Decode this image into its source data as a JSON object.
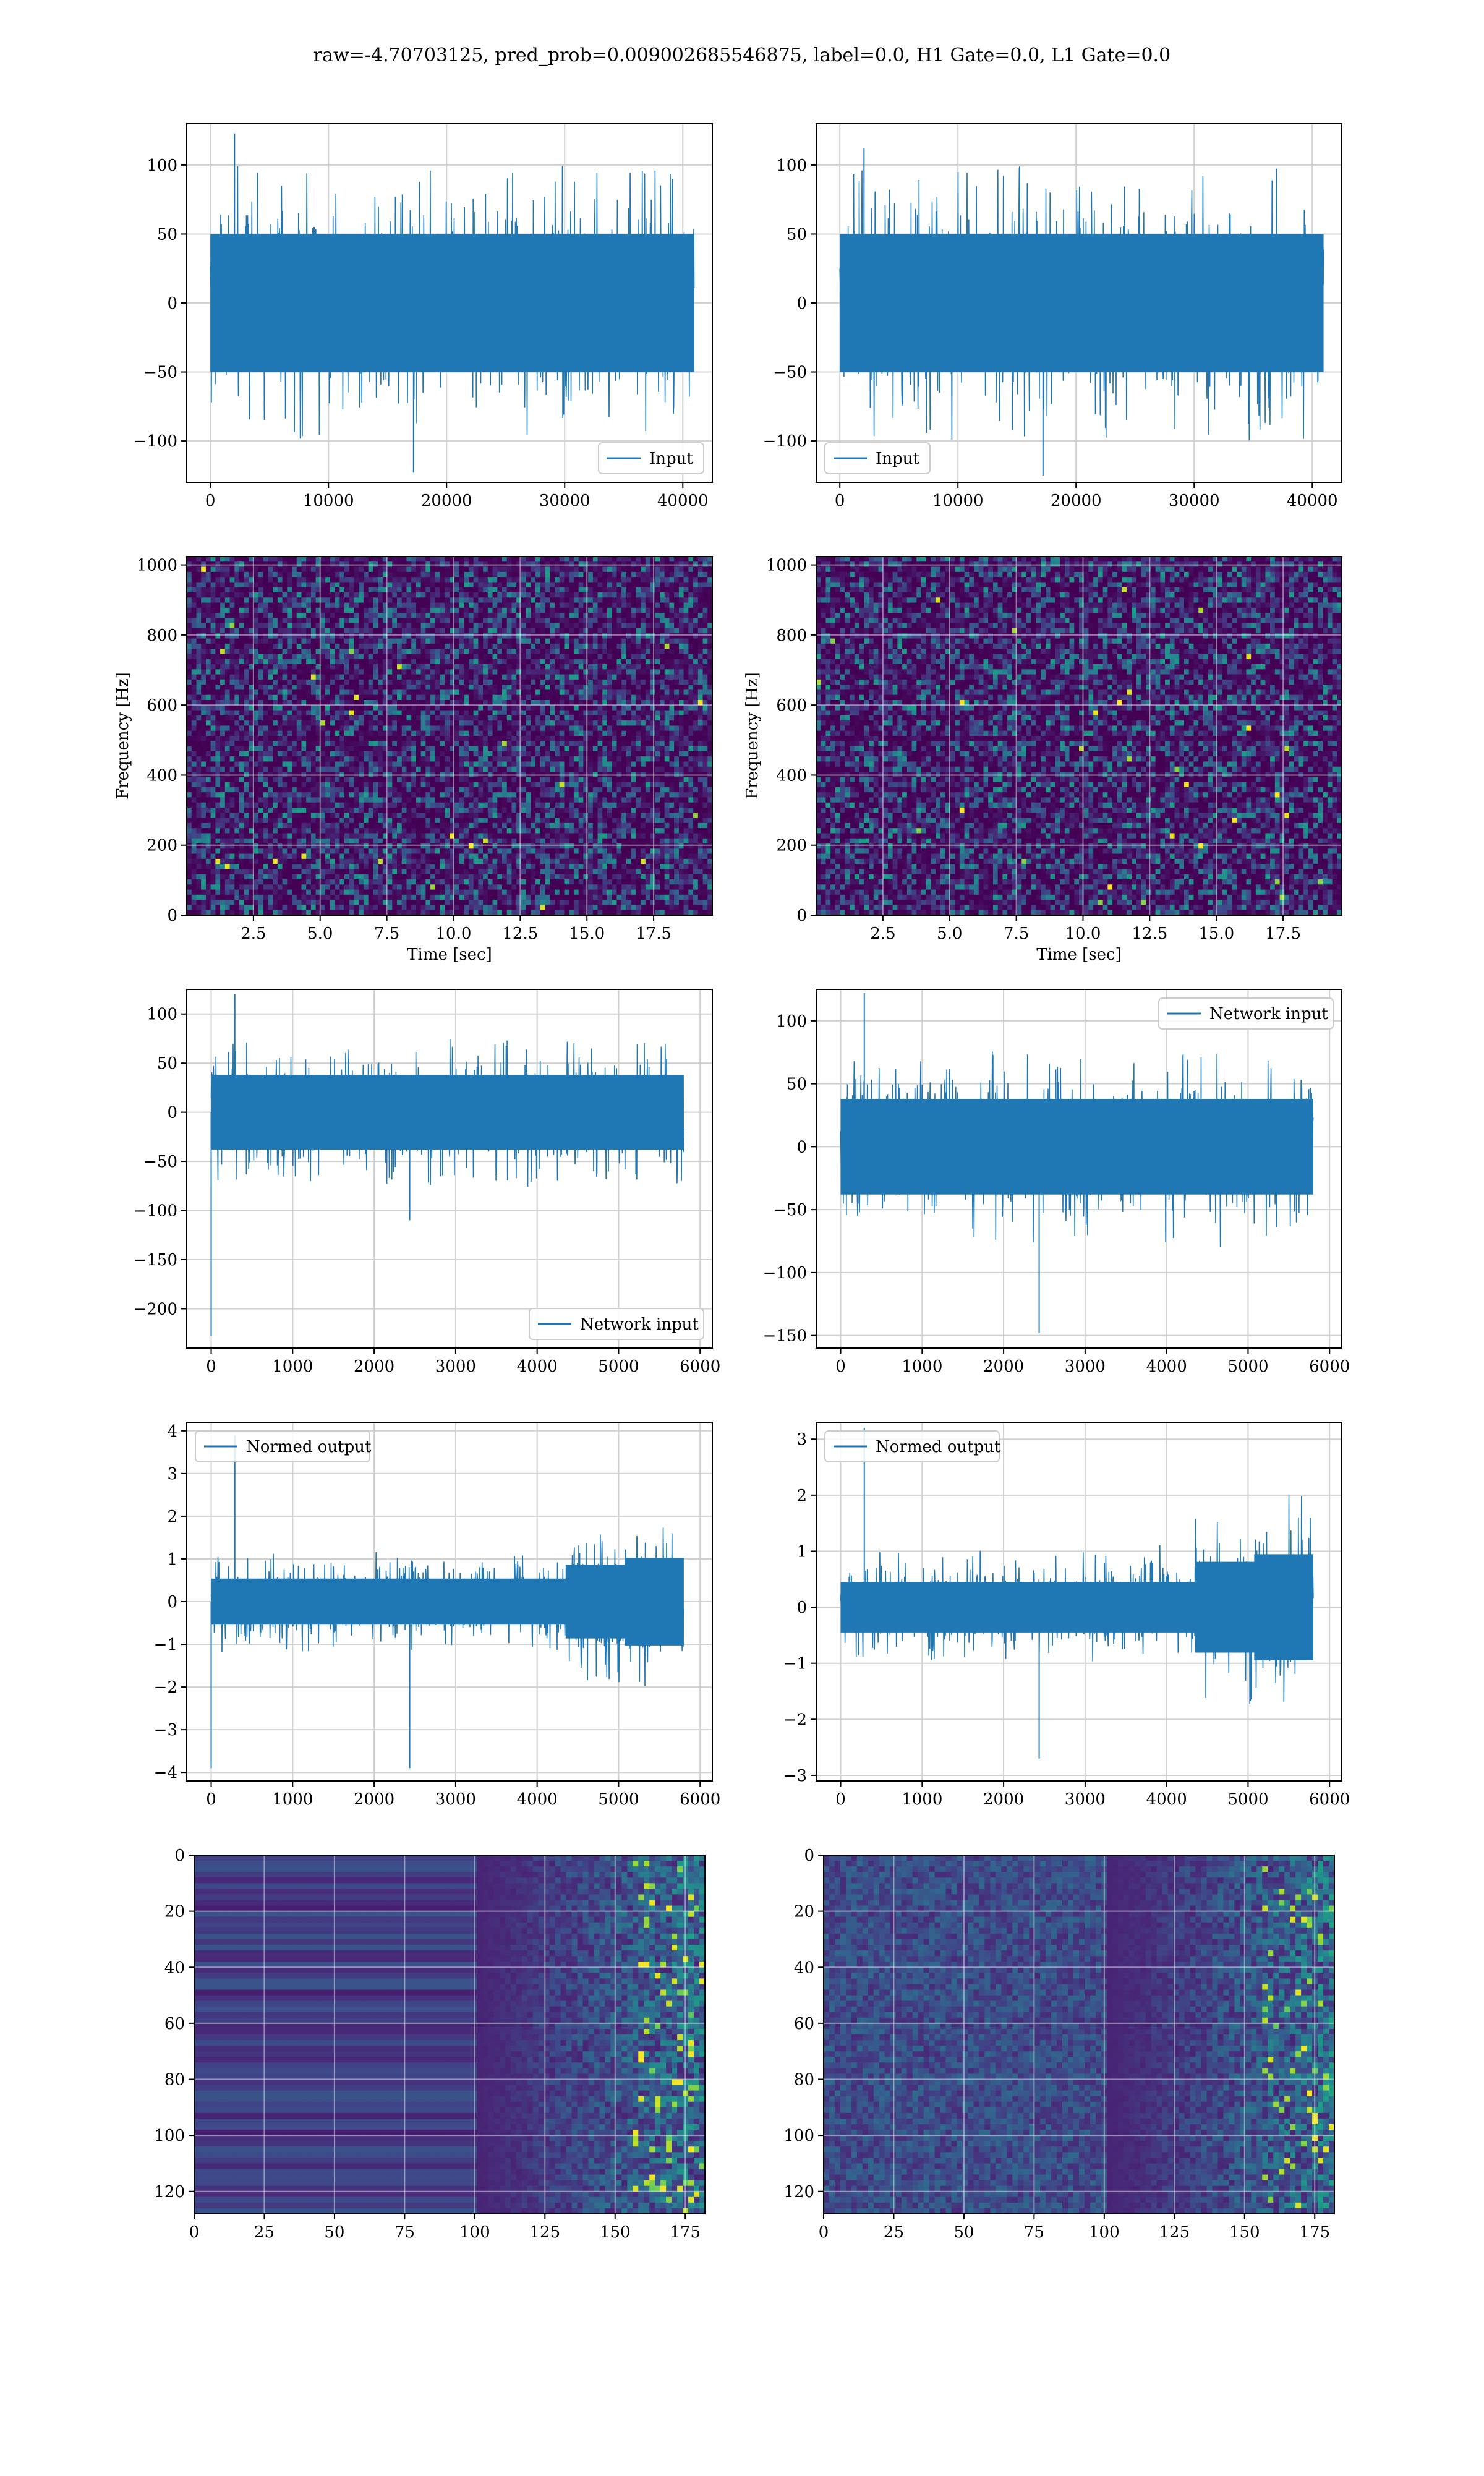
{
  "figure": {
    "suptitle": "raw=-4.70703125, pred_prob=0.009002685546875, label=0.0, H1 Gate=0.0, L1 Gate=0.0"
  },
  "colors": {
    "series": "#1f77b4",
    "grid": "#d0d0d0",
    "axis": "#000000",
    "heatmap_low": "#440154",
    "heatmap_mid": "#21908d",
    "heatmap_high": "#fde725"
  },
  "chart_data": [
    {
      "id": "p1",
      "type": "line",
      "xlim": [
        -2000,
        42500
      ],
      "ylim": [
        -130,
        130
      ],
      "xticks": [
        0,
        10000,
        20000,
        30000,
        40000
      ],
      "xticklabels": [
        "0",
        "10000",
        "20000",
        "30000",
        "40000"
      ],
      "yticks": [
        -100,
        -50,
        0,
        50,
        100
      ],
      "yticklabels": [
        "−100",
        "−50",
        "0",
        "50",
        "100"
      ],
      "series": [
        {
          "name": "Input",
          "x_range": [
            0,
            40960
          ],
          "core_amplitude": 50,
          "max": 123,
          "min": -123,
          "envelope": [
            1,
            1,
            1,
            1,
            1,
            1,
            1,
            1
          ]
        }
      ],
      "legend": "lower right",
      "grid": true,
      "xlabel": "",
      "ylabel": ""
    },
    {
      "id": "p2",
      "type": "line",
      "xlim": [
        -2000,
        42500
      ],
      "ylim": [
        -130,
        130
      ],
      "xticks": [
        0,
        10000,
        20000,
        30000,
        40000
      ],
      "xticklabels": [
        "0",
        "10000",
        "20000",
        "30000",
        "40000"
      ],
      "yticks": [
        -100,
        -50,
        0,
        50,
        100
      ],
      "yticklabels": [
        "−100",
        "−50",
        "0",
        "50",
        "100"
      ],
      "series": [
        {
          "name": "Input",
          "x_range": [
            0,
            40960
          ],
          "core_amplitude": 50,
          "max": 112,
          "min": -125,
          "envelope": [
            1,
            1,
            1,
            1,
            1,
            1,
            1,
            1
          ]
        }
      ],
      "legend": "lower left",
      "grid": true,
      "xlabel": "",
      "ylabel": ""
    },
    {
      "id": "p3",
      "type": "heatmap",
      "xlim": [
        0,
        19.7
      ],
      "ylim": [
        0,
        1024
      ],
      "xticks": [
        2.5,
        5.0,
        7.5,
        10.0,
        12.5,
        15.0,
        17.5
      ],
      "xticklabels": [
        "2.5",
        "5.0",
        "7.5",
        "10.0",
        "12.5",
        "15.0",
        "17.5"
      ],
      "yticks": [
        0,
        200,
        400,
        600,
        800,
        1000
      ],
      "yticklabels": [
        "0",
        "200",
        "400",
        "600",
        "800",
        "1000"
      ],
      "xlabel": "Time [sec]",
      "ylabel": "Frequency [Hz]",
      "grid": true
    },
    {
      "id": "p4",
      "type": "heatmap",
      "xlim": [
        0,
        19.7
      ],
      "ylim": [
        0,
        1024
      ],
      "xticks": [
        2.5,
        5.0,
        7.5,
        10.0,
        12.5,
        15.0,
        17.5
      ],
      "xticklabels": [
        "2.5",
        "5.0",
        "7.5",
        "10.0",
        "12.5",
        "15.0",
        "17.5"
      ],
      "yticks": [
        0,
        200,
        400,
        600,
        800,
        1000
      ],
      "yticklabels": [
        "0",
        "200",
        "400",
        "600",
        "800",
        "1000"
      ],
      "xlabel": "Time [sec]",
      "ylabel": "Frequency [Hz]",
      "grid": true
    },
    {
      "id": "p5",
      "type": "line",
      "xlim": [
        -300,
        6150
      ],
      "ylim": [
        -240,
        125
      ],
      "xticks": [
        0,
        1000,
        2000,
        3000,
        4000,
        5000,
        6000
      ],
      "xticklabels": [
        "0",
        "1000",
        "2000",
        "3000",
        "4000",
        "5000",
        "6000"
      ],
      "yticks": [
        -200,
        -150,
        -100,
        -50,
        0,
        50,
        100
      ],
      "yticklabels": [
        "−200",
        "−150",
        "−100",
        "−50",
        "0",
        "50",
        "100"
      ],
      "series": [
        {
          "name": "Network input",
          "x_range": [
            0,
            5800
          ],
          "core_amplitude": 38,
          "max": 120,
          "min": -110,
          "spike": {
            "x": 0,
            "y": -228
          },
          "envelope": [
            1,
            1,
            1,
            1,
            1,
            1,
            1,
            1
          ]
        }
      ],
      "legend": "lower right",
      "grid": true,
      "xlabel": "",
      "ylabel": ""
    },
    {
      "id": "p6",
      "type": "line",
      "xlim": [
        -300,
        6150
      ],
      "ylim": [
        -160,
        125
      ],
      "xticks": [
        0,
        1000,
        2000,
        3000,
        4000,
        5000,
        6000
      ],
      "xticklabels": [
        "0",
        "1000",
        "2000",
        "3000",
        "4000",
        "5000",
        "6000"
      ],
      "yticks": [
        -150,
        -100,
        -50,
        0,
        50,
        100
      ],
      "yticklabels": [
        "−150",
        "−100",
        "−50",
        "0",
        "50",
        "100"
      ],
      "series": [
        {
          "name": "Network input",
          "x_range": [
            0,
            5800
          ],
          "core_amplitude": 38,
          "max": 122,
          "min": -148,
          "envelope": [
            1,
            1,
            1,
            1,
            1,
            1,
            1,
            1
          ]
        }
      ],
      "legend": "upper right",
      "grid": true,
      "xlabel": "",
      "ylabel": ""
    },
    {
      "id": "p7",
      "type": "line",
      "xlim": [
        -300,
        6150
      ],
      "ylim": [
        -4.2,
        4.2
      ],
      "xticks": [
        0,
        1000,
        2000,
        3000,
        4000,
        5000,
        6000
      ],
      "xticklabels": [
        "0",
        "1000",
        "2000",
        "3000",
        "4000",
        "5000",
        "6000"
      ],
      "yticks": [
        -4,
        -3,
        -2,
        -1,
        0,
        1,
        2,
        3,
        4
      ],
      "yticklabels": [
        "−4",
        "−3",
        "−2",
        "−1",
        "0",
        "1",
        "2",
        "3",
        "4"
      ],
      "series": [
        {
          "name": "Normed output",
          "x_range": [
            0,
            5800
          ],
          "core_amplitude": 0.6,
          "max": 3.9,
          "min": -3.9,
          "spike": {
            "x": 0,
            "y": -3.9
          },
          "envelope": [
            1,
            1,
            1,
            1,
            1,
            1,
            1.6,
            1.9
          ]
        }
      ],
      "legend": "upper left",
      "grid": true,
      "xlabel": "",
      "ylabel": ""
    },
    {
      "id": "p8",
      "type": "line",
      "xlim": [
        -300,
        6150
      ],
      "ylim": [
        -3.1,
        3.3
      ],
      "xticks": [
        0,
        1000,
        2000,
        3000,
        4000,
        5000,
        6000
      ],
      "xticklabels": [
        "0",
        "1000",
        "2000",
        "3000",
        "4000",
        "5000",
        "6000"
      ],
      "yticks": [
        -3,
        -2,
        -1,
        0,
        1,
        2,
        3
      ],
      "yticklabels": [
        "−3",
        "−2",
        "−1",
        "0",
        "1",
        "2",
        "3"
      ],
      "series": [
        {
          "name": "Normed output",
          "x_range": [
            0,
            5800
          ],
          "core_amplitude": 0.5,
          "max": 3.2,
          "min": -2.7,
          "envelope": [
            1,
            1,
            1,
            1,
            1,
            1,
            1.8,
            2.1
          ]
        }
      ],
      "legend": "upper left",
      "grid": true,
      "xlabel": "",
      "ylabel": ""
    },
    {
      "id": "p9",
      "type": "heatmap",
      "xlim": [
        0,
        182
      ],
      "ylim": [
        128,
        0
      ],
      "xticks": [
        0,
        25,
        50,
        75,
        100,
        125,
        150,
        175
      ],
      "xticklabels": [
        "0",
        "25",
        "50",
        "75",
        "100",
        "125",
        "150",
        "175"
      ],
      "yticks": [
        0,
        20,
        40,
        60,
        80,
        100,
        120
      ],
      "yticklabels": [
        "0",
        "20",
        "40",
        "60",
        "80",
        "100",
        "120"
      ],
      "xlabel": "",
      "ylabel": "",
      "grid": true
    },
    {
      "id": "p10",
      "type": "heatmap",
      "xlim": [
        0,
        182
      ],
      "ylim": [
        128,
        0
      ],
      "xticks": [
        0,
        25,
        50,
        75,
        100,
        125,
        150,
        175
      ],
      "xticklabels": [
        "0",
        "25",
        "50",
        "75",
        "100",
        "125",
        "150",
        "175"
      ],
      "yticks": [
        0,
        20,
        40,
        60,
        80,
        100,
        120
      ],
      "yticklabels": [
        "0",
        "20",
        "40",
        "60",
        "80",
        "100",
        "120"
      ],
      "xlabel": "",
      "ylabel": "",
      "grid": true
    }
  ]
}
